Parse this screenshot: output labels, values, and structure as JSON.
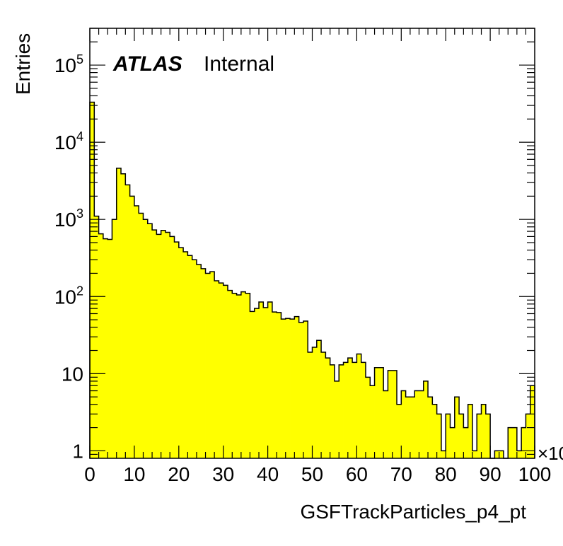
{
  "chart_data": {
    "type": "histogram",
    "log_y": true,
    "grid": false,
    "xlabel": "GSFTrackParticles_p4_pt",
    "ylabel": "Entries",
    "x_multiplier_label": "×10",
    "atlas_label": "ATLAS",
    "atlas_sublabel": "Internal",
    "xlim": [
      0,
      100
    ],
    "ylim": [
      0.8,
      300000
    ],
    "x_ticks": [
      0,
      10,
      20,
      30,
      40,
      50,
      60,
      70,
      80,
      90,
      100
    ],
    "x_tick_labels": [
      "0",
      "10",
      "20",
      "30",
      "40",
      "50",
      "60",
      "70",
      "80",
      "90",
      "100"
    ],
    "y_ticks": [
      1,
      10,
      100,
      1000,
      10000,
      100000
    ],
    "y_tick_labels": [
      {
        "base": "1",
        "exp": ""
      },
      {
        "base": "10",
        "exp": ""
      },
      {
        "base": "10",
        "exp": "2"
      },
      {
        "base": "10",
        "exp": "3"
      },
      {
        "base": "10",
        "exp": "4"
      },
      {
        "base": "10",
        "exp": "5"
      }
    ],
    "fill_color": "#ffff00",
    "line_color": "#000000",
    "bin_edges_start": 0,
    "bin_width": 1,
    "values": [
      33000,
      1100,
      650,
      560,
      550,
      1000,
      4600,
      3900,
      2800,
      2000,
      1500,
      1200,
      1000,
      880,
      730,
      640,
      720,
      680,
      600,
      510,
      430,
      380,
      340,
      300,
      260,
      230,
      200,
      210,
      160,
      150,
      140,
      120,
      110,
      105,
      115,
      110,
      64,
      70,
      85,
      72,
      85,
      63,
      62,
      51,
      52,
      51,
      55,
      46,
      48,
      19,
      22,
      27,
      19,
      16,
      13,
      8,
      13,
      14,
      16,
      14,
      18,
      14,
      9,
      7,
      12,
      12,
      6,
      11,
      11,
      4,
      6,
      5,
      5,
      6,
      6,
      8,
      5,
      4,
      3,
      1,
      3,
      2,
      5,
      3,
      2,
      4,
      1,
      3,
      4,
      3,
      0.5,
      1,
      1,
      0.5,
      2,
      2,
      1,
      2,
      3,
      7
    ]
  }
}
